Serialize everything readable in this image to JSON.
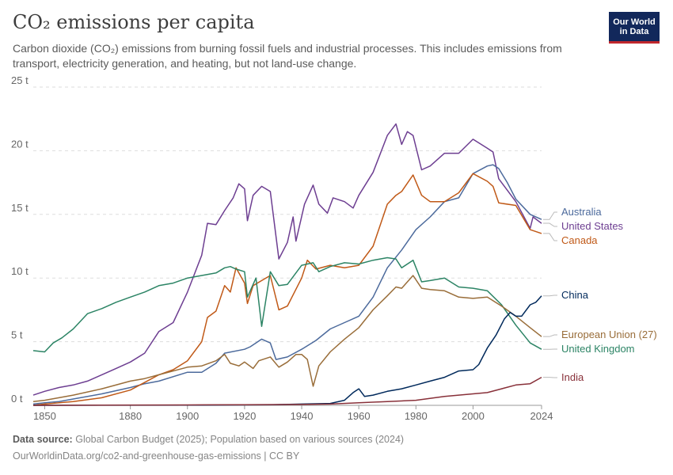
{
  "header": {
    "title": "CO₂ emissions per capita",
    "subtitle": "Carbon dioxide (CO₂) emissions from burning fossil fuels and industrial processes. This includes emissions from transport, electricity generation, and heating, but not land-use change.",
    "logo_line1": "Our World",
    "logo_line2": "in Data"
  },
  "footer": {
    "source_label": "Data source:",
    "source_text": "Global Carbon Budget (2025); Population based on various sources (2024)",
    "url_text": "OurWorldinData.org/co2-and-greenhouse-gas-emissions | CC BY"
  },
  "colors": {
    "Australia": "#4c6a9c",
    "United States": "#6d3e91",
    "Canada": "#c05917",
    "China": "#00295b",
    "European Union (27)": "#996d39",
    "United Kingdom": "#2c8465",
    "India": "#883039"
  },
  "chart_data": {
    "type": "line",
    "title": "CO₂ emissions per capita",
    "xlabel": "",
    "ylabel": "",
    "xlim": [
      1846,
      2024
    ],
    "ylim": [
      0,
      25
    ],
    "y_unit": "t",
    "grid": true,
    "legend": "right, labels at line ends",
    "x_ticks": [
      1850,
      1880,
      1900,
      1920,
      1940,
      1960,
      1980,
      2000,
      2024
    ],
    "y_ticks": [
      0,
      5,
      10,
      15,
      20,
      25
    ],
    "y_tick_labels": [
      "0 t",
      "5 t",
      "10 t",
      "15 t",
      "20 t",
      "25 t"
    ],
    "x_tick_labels": [
      "1850",
      "1880",
      "1900",
      "1920",
      "1940",
      "1960",
      "1980",
      "2000",
      "2024"
    ],
    "series": [
      {
        "name": "United States",
        "x": [
          1846,
          1850,
          1855,
          1860,
          1865,
          1870,
          1875,
          1880,
          1885,
          1890,
          1895,
          1900,
          1905,
          1907,
          1910,
          1913,
          1916,
          1918,
          1920,
          1921,
          1923,
          1926,
          1929,
          1932,
          1935,
          1937,
          1938,
          1941,
          1944,
          1946,
          1949,
          1951,
          1955,
          1958,
          1960,
          1965,
          1970,
          1973,
          1975,
          1977,
          1979,
          1982,
          1985,
          1990,
          1995,
          2000,
          2005,
          2007,
          2009,
          2015,
          2020,
          2021,
          2024
        ],
        "y": [
          0.8,
          1.1,
          1.4,
          1.6,
          1.9,
          2.4,
          2.9,
          3.4,
          4.1,
          5.8,
          6.5,
          8.9,
          11.8,
          14.3,
          14.2,
          15.3,
          16.3,
          17.4,
          17.0,
          14.5,
          16.5,
          17.2,
          16.8,
          11.5,
          12.8,
          14.8,
          12.9,
          15.8,
          17.3,
          15.8,
          15.1,
          16.3,
          16.0,
          15.5,
          16.5,
          18.3,
          21.2,
          22.1,
          20.5,
          21.5,
          21.2,
          18.5,
          18.8,
          19.8,
          19.8,
          20.9,
          20.2,
          19.9,
          17.8,
          16.0,
          13.9,
          14.8,
          14.3
        ]
      },
      {
        "name": "Australia",
        "x": [
          1846,
          1850,
          1855,
          1860,
          1870,
          1880,
          1885,
          1890,
          1900,
          1905,
          1910,
          1913,
          1920,
          1922,
          1926,
          1929,
          1931,
          1935,
          1940,
          1945,
          1950,
          1955,
          1960,
          1965,
          1970,
          1975,
          1980,
          1985,
          1990,
          1995,
          2000,
          2005,
          2007,
          2009,
          2012,
          2015,
          2020,
          2024
        ],
        "y": [
          0.1,
          0.2,
          0.3,
          0.5,
          0.9,
          1.4,
          1.7,
          1.9,
          2.6,
          2.6,
          3.3,
          4.1,
          4.4,
          4.6,
          5.2,
          4.9,
          3.6,
          3.8,
          4.4,
          5.1,
          6.0,
          6.5,
          7.0,
          8.5,
          10.8,
          12.2,
          13.8,
          14.8,
          16.0,
          16.3,
          18.2,
          18.8,
          18.9,
          18.6,
          17.5,
          16.2,
          15.0,
          14.6
        ]
      },
      {
        "name": "Canada",
        "x": [
          1846,
          1850,
          1860,
          1870,
          1880,
          1885,
          1890,
          1895,
          1900,
          1905,
          1907,
          1910,
          1913,
          1915,
          1917,
          1920,
          1921,
          1923,
          1926,
          1929,
          1932,
          1935,
          1940,
          1942,
          1945,
          1950,
          1955,
          1960,
          1965,
          1970,
          1973,
          1975,
          1979,
          1982,
          1985,
          1990,
          1995,
          2000,
          2005,
          2007,
          2009,
          2015,
          2020,
          2024
        ],
        "y": [
          0,
          0.1,
          0.3,
          0.6,
          1.2,
          1.8,
          2.4,
          2.8,
          3.5,
          5.0,
          6.9,
          7.4,
          9.4,
          8.9,
          10.8,
          9.6,
          8.0,
          9.4,
          9.8,
          10.2,
          7.5,
          7.8,
          10.0,
          11.4,
          10.7,
          11.0,
          10.8,
          11.0,
          12.5,
          15.8,
          16.5,
          16.8,
          18.1,
          16.5,
          16.0,
          16.0,
          16.7,
          18.2,
          17.6,
          17.2,
          15.9,
          15.7,
          13.8,
          13.5
        ]
      },
      {
        "name": "United Kingdom",
        "x": [
          1846,
          1850,
          1853,
          1856,
          1860,
          1865,
          1870,
          1875,
          1880,
          1885,
          1890,
          1895,
          1900,
          1905,
          1910,
          1913,
          1915,
          1917,
          1920,
          1921,
          1924,
          1926,
          1929,
          1932,
          1935,
          1940,
          1944,
          1946,
          1950,
          1955,
          1960,
          1965,
          1970,
          1973,
          1975,
          1979,
          1982,
          1985,
          1990,
          1995,
          2000,
          2005,
          2010,
          2015,
          2020,
          2024
        ],
        "y": [
          4.3,
          4.2,
          4.9,
          5.3,
          6.0,
          7.2,
          7.6,
          8.1,
          8.5,
          8.9,
          9.4,
          9.6,
          10.0,
          10.2,
          10.4,
          10.8,
          10.9,
          10.7,
          10.5,
          8.5,
          10.0,
          6.2,
          10.5,
          9.4,
          9.5,
          11.0,
          11.2,
          10.5,
          10.9,
          11.2,
          11.1,
          11.4,
          11.6,
          11.5,
          10.8,
          11.4,
          9.7,
          9.8,
          10.0,
          9.3,
          9.2,
          9.0,
          7.9,
          6.3,
          4.9,
          4.4
        ]
      },
      {
        "name": "European Union (27)",
        "x": [
          1846,
          1850,
          1860,
          1870,
          1880,
          1885,
          1890,
          1900,
          1905,
          1910,
          1913,
          1915,
          1918,
          1920,
          1923,
          1925,
          1929,
          1932,
          1935,
          1938,
          1940,
          1942,
          1944,
          1946,
          1950,
          1955,
          1960,
          1965,
          1970,
          1973,
          1975,
          1979,
          1982,
          1985,
          1990,
          1995,
          2000,
          2005,
          2010,
          2015,
          2020,
          2024
        ],
        "y": [
          0.3,
          0.4,
          0.8,
          1.3,
          1.9,
          2.1,
          2.4,
          3.0,
          3.1,
          3.5,
          4.0,
          3.3,
          3.1,
          3.4,
          2.9,
          3.5,
          3.8,
          3.0,
          3.4,
          4.0,
          4.0,
          3.6,
          1.5,
          3.1,
          4.2,
          5.2,
          6.1,
          7.5,
          8.6,
          9.3,
          9.2,
          10.2,
          9.2,
          9.1,
          9.0,
          8.5,
          8.4,
          8.5,
          7.8,
          7.0,
          6.1,
          5.4
        ]
      },
      {
        "name": "China",
        "x": [
          1846,
          1900,
          1930,
          1940,
          1950,
          1955,
          1958,
          1960,
          1962,
          1965,
          1970,
          1975,
          1980,
          1985,
          1990,
          1995,
          2000,
          2002,
          2005,
          2008,
          2011,
          2013,
          2015,
          2017,
          2020,
          2022,
          2024
        ],
        "y": [
          0,
          0.01,
          0.05,
          0.1,
          0.15,
          0.4,
          1.0,
          1.3,
          0.7,
          0.8,
          1.1,
          1.3,
          1.6,
          1.9,
          2.2,
          2.7,
          2.8,
          3.2,
          4.5,
          5.5,
          6.8,
          7.3,
          7.0,
          7.0,
          7.9,
          8.1,
          8.6
        ]
      },
      {
        "name": "India",
        "x": [
          1846,
          1900,
          1920,
          1940,
          1950,
          1960,
          1970,
          1980,
          1990,
          2000,
          2005,
          2010,
          2015,
          2020,
          2024
        ],
        "y": [
          0,
          0.03,
          0.05,
          0.07,
          0.1,
          0.2,
          0.3,
          0.4,
          0.7,
          0.9,
          1.0,
          1.3,
          1.6,
          1.7,
          2.2
        ]
      }
    ]
  }
}
